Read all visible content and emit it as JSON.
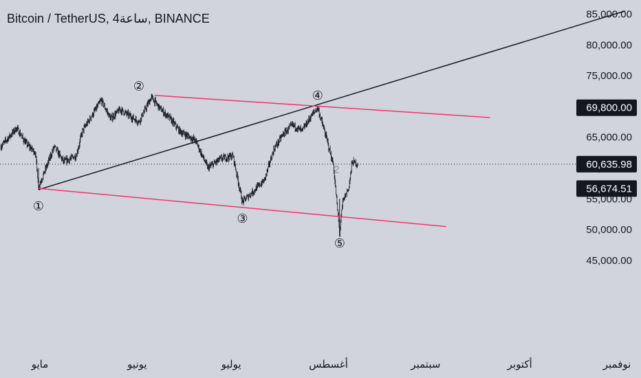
{
  "title": "Bitcoin / TetherUS, 4ساعة, BINANCE",
  "chart_data": {
    "type": "candlestick",
    "symbol": "Bitcoin / TetherUS",
    "interval": "4ساعة",
    "exchange": "BINANCE",
    "ylim": [
      42500,
      87000
    ],
    "y_ticks": [
      45000,
      50000,
      55000,
      60000,
      65000,
      70000,
      75000,
      80000,
      85000
    ],
    "y_tick_labels": [
      "45,000.00",
      "50,000.00",
      "55,000.00",
      "60,000.00",
      "65,000.00",
      "70,000.00",
      "75,000.00",
      "80,000.00",
      "85,000.00"
    ],
    "x_ticks": [
      {
        "label": "مايو",
        "date": "2024-05-01"
      },
      {
        "label": "يونيو",
        "date": "2024-06-01"
      },
      {
        "label": "يوليو",
        "date": "2024-07-01"
      },
      {
        "label": "أغسطس",
        "date": "2024-08-01"
      },
      {
        "label": "سبتمبر",
        "date": "2024-09-01"
      },
      {
        "label": "أكتوبر",
        "date": "2024-10-01"
      },
      {
        "label": "نوفمبر",
        "date": "2024-11-01"
      }
    ],
    "price_path": [
      {
        "date": "2024-04-19",
        "price": 63500
      },
      {
        "date": "2024-04-24",
        "price": 66500
      },
      {
        "date": "2024-04-27",
        "price": 64000
      },
      {
        "date": "2024-04-30",
        "price": 62500
      },
      {
        "date": "2024-05-01",
        "price": 57000
      },
      {
        "date": "2024-05-03",
        "price": 59500
      },
      {
        "date": "2024-05-06",
        "price": 63500
      },
      {
        "date": "2024-05-09",
        "price": 61000
      },
      {
        "date": "2024-05-13",
        "price": 62000
      },
      {
        "date": "2024-05-15",
        "price": 66000
      },
      {
        "date": "2024-05-21",
        "price": 71000
      },
      {
        "date": "2024-05-24",
        "price": 68000
      },
      {
        "date": "2024-05-27",
        "price": 69500
      },
      {
        "date": "2024-06-02",
        "price": 67500
      },
      {
        "date": "2024-06-06",
        "price": 71500
      },
      {
        "date": "2024-06-09",
        "price": 69500
      },
      {
        "date": "2024-06-12",
        "price": 68000
      },
      {
        "date": "2024-06-15",
        "price": 66000
      },
      {
        "date": "2024-06-20",
        "price": 64500
      },
      {
        "date": "2024-06-24",
        "price": 60000
      },
      {
        "date": "2024-06-28",
        "price": 61500
      },
      {
        "date": "2024-07-02",
        "price": 62000
      },
      {
        "date": "2024-07-05",
        "price": 54500
      },
      {
        "date": "2024-07-08",
        "price": 56000
      },
      {
        "date": "2024-07-12",
        "price": 58000
      },
      {
        "date": "2024-07-15",
        "price": 63000
      },
      {
        "date": "2024-07-18",
        "price": 65500
      },
      {
        "date": "2024-07-21",
        "price": 67000
      },
      {
        "date": "2024-07-24",
        "price": 66000
      },
      {
        "date": "2024-07-27",
        "price": 68500
      },
      {
        "date": "2024-07-29",
        "price": 69800
      },
      {
        "date": "2024-08-01",
        "price": 64500
      },
      {
        "date": "2024-08-03",
        "price": 60500
      },
      {
        "date": "2024-08-05",
        "price": 49500
      },
      {
        "date": "2024-08-06",
        "price": 54500
      },
      {
        "date": "2024-08-08",
        "price": 57000
      },
      {
        "date": "2024-08-09",
        "price": 61000
      },
      {
        "date": "2024-08-11",
        "price": 60636
      }
    ],
    "trend_lines": [
      {
        "name": "trend-line",
        "color": "#131722",
        "from": {
          "date": "2024-05-01",
          "price": 56500
        },
        "to": {
          "date": "2024-11-04",
          "price": 85500
        }
      },
      {
        "name": "channel-upper",
        "color": "#f0336b",
        "from": {
          "date": "2024-06-07",
          "price": 71800
        },
        "to": {
          "date": "2024-09-22",
          "price": 68200
        }
      },
      {
        "name": "channel-lower",
        "color": "#f0336b",
        "from": {
          "date": "2024-05-01",
          "price": 56700
        },
        "to": {
          "date": "2024-09-08",
          "price": 50500
        }
      }
    ],
    "waves": [
      {
        "label": "①",
        "date": "2024-05-01",
        "price": 53800
      },
      {
        "label": "②",
        "date": "2024-06-02",
        "price": 73300
      },
      {
        "label": "③",
        "date": "2024-07-05",
        "price": 51800
      },
      {
        "label": "④",
        "date": "2024-07-29",
        "price": 71800
      },
      {
        "label": "⑤",
        "date": "2024-08-05",
        "price": 47800
      }
    ],
    "extra_label": {
      "text": "2",
      "date": "2024-08-04",
      "price": 59800
    },
    "price_tags": [
      {
        "value": "69,800.00",
        "price": 69800
      },
      {
        "value": "60,635.98",
        "price": 60636,
        "dotted_line": true
      },
      {
        "value": "56,674.51",
        "price": 56675
      }
    ],
    "grid": false
  }
}
